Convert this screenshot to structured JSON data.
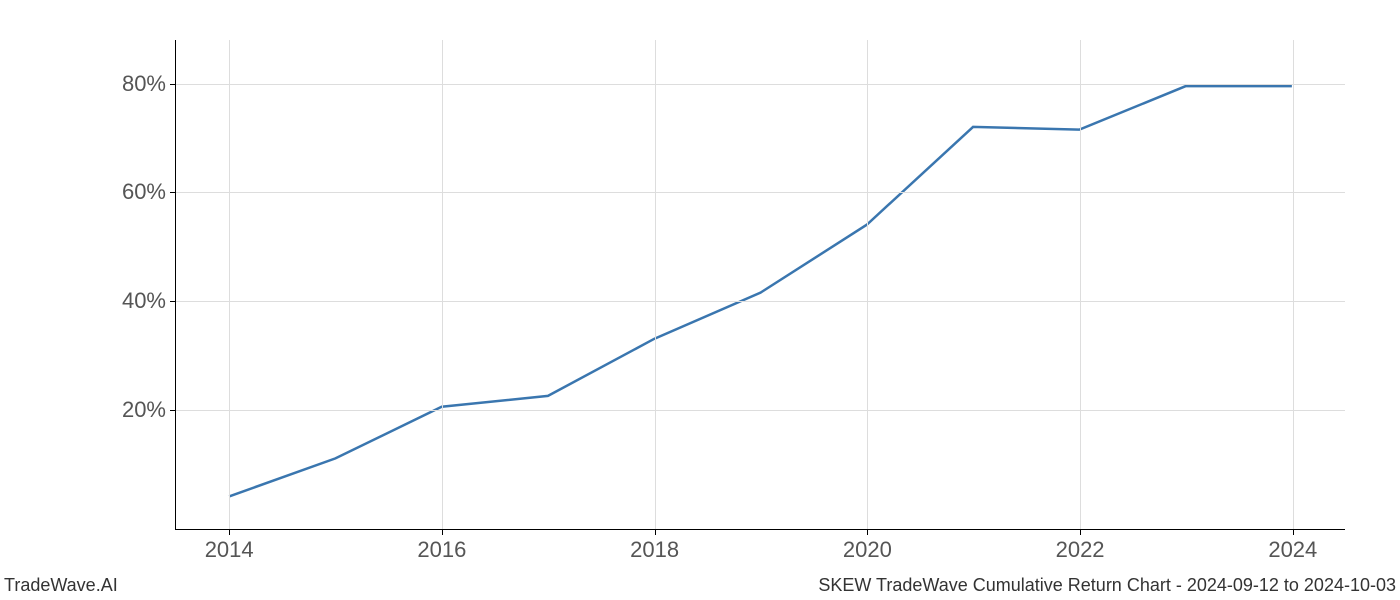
{
  "chart": {
    "type": "line",
    "background_color": "#ffffff",
    "grid_color": "#dddddd",
    "axis_color": "#000000",
    "tick_label_color": "#555555",
    "tick_label_fontsize": 22,
    "line_color": "#3a76af",
    "line_width": 2.5,
    "xlim": [
      2013.5,
      2024.5
    ],
    "ylim": [
      -2,
      88
    ],
    "x_ticks": [
      2014,
      2016,
      2018,
      2020,
      2022,
      2024
    ],
    "x_tick_labels": [
      "2014",
      "2016",
      "2018",
      "2020",
      "2022",
      "2024"
    ],
    "y_ticks": [
      20,
      40,
      60,
      80
    ],
    "y_tick_labels": [
      "20%",
      "40%",
      "60%",
      "80%"
    ],
    "x_values": [
      2014,
      2015,
      2016,
      2017,
      2018,
      2019,
      2020,
      2021,
      2022,
      2023,
      2024
    ],
    "y_values": [
      4,
      11,
      20.5,
      22.5,
      33,
      41.5,
      54,
      72,
      71.5,
      79.5,
      79.5
    ]
  },
  "footer": {
    "left": "TradeWave.AI",
    "right": "SKEW TradeWave Cumulative Return Chart - 2024-09-12 to 2024-10-03"
  }
}
